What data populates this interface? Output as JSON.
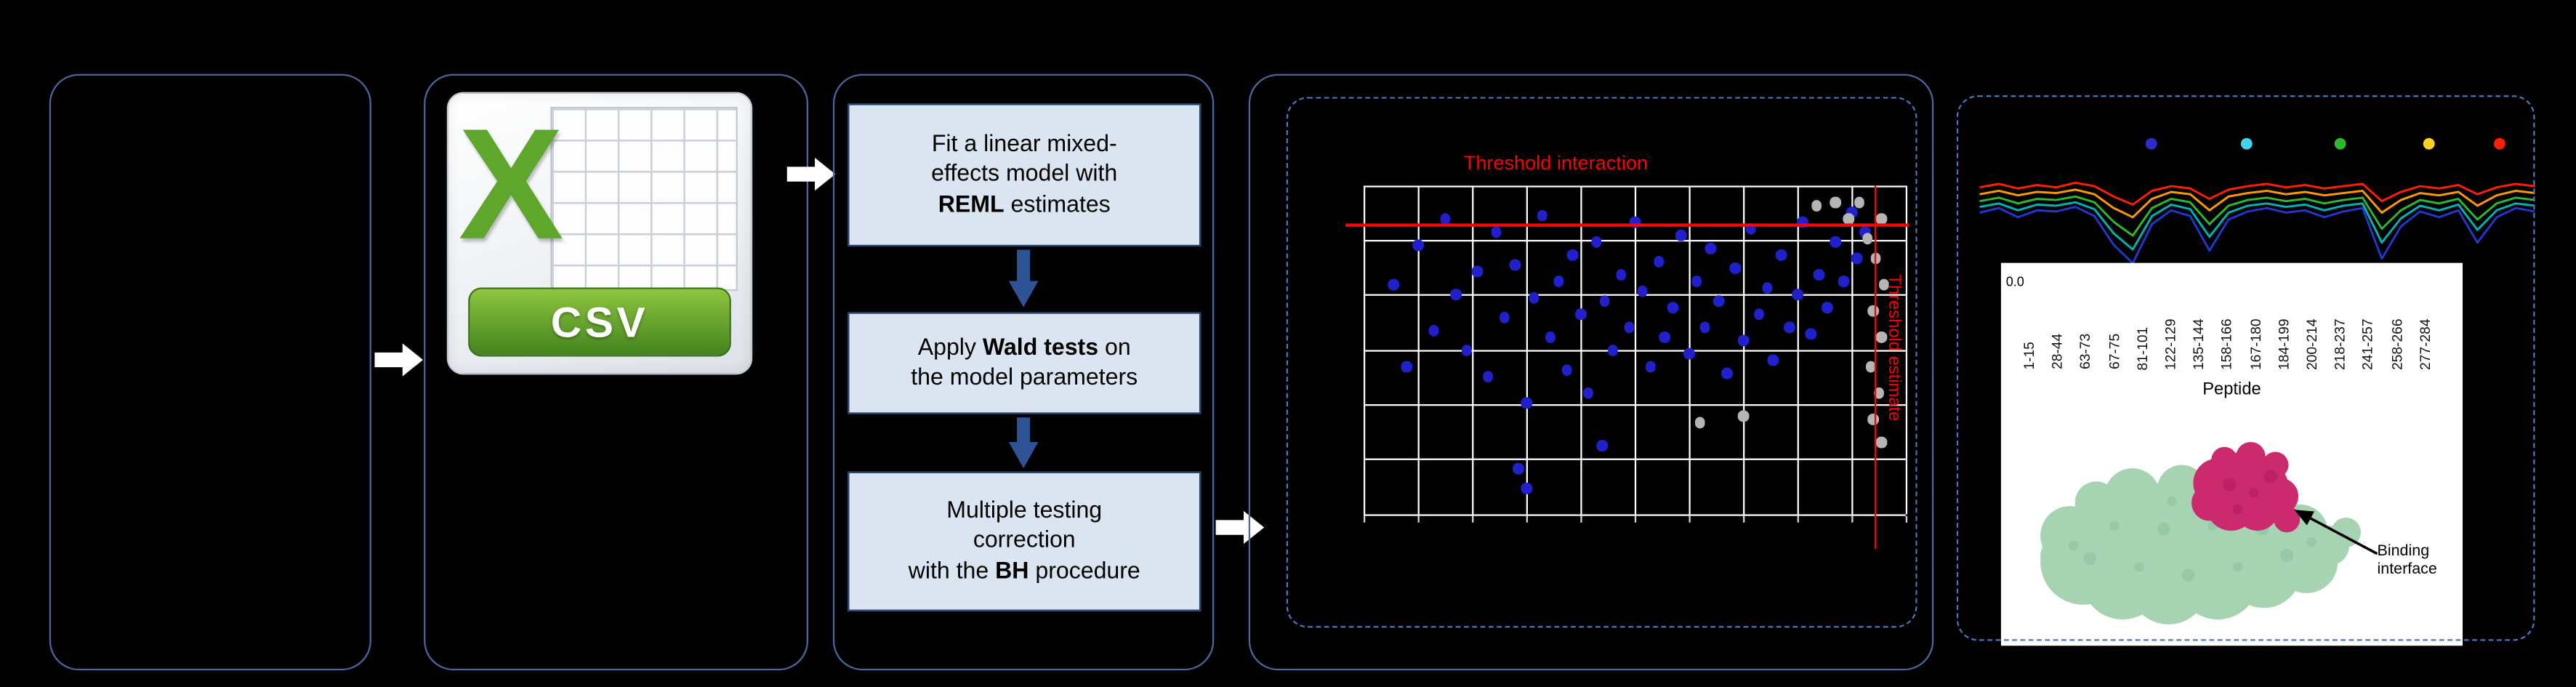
{
  "colors": {
    "panel_border": "#49679f",
    "dashed_border": "#4b76c0",
    "process_fill": "#dbe5f1",
    "process_border": "#24426e",
    "flow_arrow": "#ffffff",
    "step_arrow": "#2e5496",
    "threshold_red": "#ff0000",
    "grid_white": "#ffffff",
    "point_blue": "#2020cc",
    "point_gray": "#b5b5b5",
    "csv_green": "#5ea62c",
    "banner_green_top": "#8dc63f",
    "banner_green_bottom": "#44831e",
    "protein_green": "#a6d3b2",
    "protein_green_dark": "#7fb894",
    "protein_pink": "#cc2a6e",
    "protein_pink_dark": "#a81256"
  },
  "csv": {
    "x_letter": "X",
    "label": "CSV"
  },
  "process": {
    "steps": [
      {
        "lines": [
          [
            {
              "t": "Fit a linear mixed-"
            }
          ],
          [
            {
              "t": "effects model with"
            }
          ],
          [
            {
              "t": "REML",
              "b": true
            },
            {
              "t": " estimates"
            }
          ]
        ]
      },
      {
        "lines": [
          [
            {
              "t": "Apply "
            },
            {
              "t": "Wald tests",
              "b": true
            },
            {
              "t": " on"
            }
          ],
          [
            {
              "t": "the model parameters"
            }
          ]
        ]
      },
      {
        "lines": [
          [
            {
              "t": "Multiple testing"
            }
          ],
          [
            {
              "t": "correction"
            }
          ],
          [
            {
              "t": "with the "
            },
            {
              "t": "BH",
              "b": true
            },
            {
              "t": " procedure"
            }
          ]
        ]
      }
    ]
  },
  "scatter": {
    "type": "scatter",
    "title": "Threshold interaction",
    "side_label": "Threshold estimate",
    "grid": {
      "cols": 10,
      "rows": 6
    },
    "threshold_interaction_y": 0.12,
    "threshold_estimate_x": 0.945,
    "points_blue": [
      [
        0.055,
        0.3
      ],
      [
        0.08,
        0.55
      ],
      [
        0.1,
        0.18
      ],
      [
        0.13,
        0.44
      ],
      [
        0.15,
        0.1
      ],
      [
        0.17,
        0.33
      ],
      [
        0.19,
        0.5
      ],
      [
        0.21,
        0.26
      ],
      [
        0.23,
        0.58
      ],
      [
        0.245,
        0.14
      ],
      [
        0.26,
        0.4
      ],
      [
        0.28,
        0.24
      ],
      [
        0.285,
        0.86
      ],
      [
        0.3,
        0.92
      ],
      [
        0.3,
        0.66
      ],
      [
        0.315,
        0.34
      ],
      [
        0.33,
        0.09
      ],
      [
        0.345,
        0.46
      ],
      [
        0.36,
        0.29
      ],
      [
        0.375,
        0.56
      ],
      [
        0.385,
        0.21
      ],
      [
        0.4,
        0.39
      ],
      [
        0.415,
        0.63
      ],
      [
        0.43,
        0.17
      ],
      [
        0.44,
        0.79
      ],
      [
        0.445,
        0.35
      ],
      [
        0.46,
        0.5
      ],
      [
        0.475,
        0.27
      ],
      [
        0.49,
        0.43
      ],
      [
        0.5,
        0.11
      ],
      [
        0.515,
        0.32
      ],
      [
        0.53,
        0.55
      ],
      [
        0.545,
        0.23
      ],
      [
        0.555,
        0.46
      ],
      [
        0.57,
        0.37
      ],
      [
        0.585,
        0.15
      ],
      [
        0.6,
        0.51
      ],
      [
        0.615,
        0.29
      ],
      [
        0.63,
        0.43
      ],
      [
        0.64,
        0.19
      ],
      [
        0.655,
        0.35
      ],
      [
        0.67,
        0.57
      ],
      [
        0.685,
        0.25
      ],
      [
        0.7,
        0.47
      ],
      [
        0.715,
        0.13
      ],
      [
        0.73,
        0.39
      ],
      [
        0.745,
        0.31
      ],
      [
        0.755,
        0.53
      ],
      [
        0.77,
        0.21
      ],
      [
        0.785,
        0.43
      ],
      [
        0.8,
        0.33
      ],
      [
        0.81,
        0.11
      ],
      [
        0.825,
        0.45
      ],
      [
        0.84,
        0.27
      ],
      [
        0.855,
        0.37
      ],
      [
        0.87,
        0.17
      ],
      [
        0.885,
        0.29
      ],
      [
        0.9,
        0.08
      ],
      [
        0.91,
        0.22
      ],
      [
        0.925,
        0.14
      ]
    ],
    "points_gray": [
      [
        0.835,
        0.06
      ],
      [
        0.87,
        0.05
      ],
      [
        0.895,
        0.1
      ],
      [
        0.915,
        0.05
      ],
      [
        0.93,
        0.16
      ],
      [
        0.955,
        0.1
      ],
      [
        0.945,
        0.22
      ],
      [
        0.96,
        0.3
      ],
      [
        0.94,
        0.38
      ],
      [
        0.955,
        0.46
      ],
      [
        0.935,
        0.55
      ],
      [
        0.95,
        0.63
      ],
      [
        0.94,
        0.71
      ],
      [
        0.955,
        0.78
      ],
      [
        0.7,
        0.7
      ],
      [
        0.62,
        0.72
      ]
    ]
  },
  "kinetics": {
    "type": "line",
    "legend_dots": [
      {
        "color": "#2d2dc8",
        "x": 0.31
      },
      {
        "color": "#3fd4e8",
        "x": 0.48
      },
      {
        "color": "#2eb82e",
        "x": 0.65
      },
      {
        "color": "#ffd21f",
        "x": 0.81
      },
      {
        "color": "#ff1f00",
        "x": 0.935
      }
    ],
    "series": [
      {
        "color": "#ff1f00",
        "values": [
          0.3,
          0.27,
          0.31,
          0.28,
          0.3,
          0.26,
          0.29,
          0.38,
          0.45,
          0.33,
          0.29,
          0.31,
          0.4,
          0.32,
          0.29,
          0.27,
          0.3,
          0.28,
          0.31,
          0.29,
          0.27,
          0.42,
          0.34,
          0.29,
          0.31,
          0.28,
          0.36,
          0.3,
          0.27,
          0.29
        ]
      },
      {
        "color": "#ff9900",
        "values": [
          0.36,
          0.33,
          0.37,
          0.34,
          0.35,
          0.32,
          0.36,
          0.48,
          0.56,
          0.4,
          0.34,
          0.36,
          0.5,
          0.38,
          0.35,
          0.33,
          0.36,
          0.34,
          0.37,
          0.35,
          0.33,
          0.52,
          0.41,
          0.35,
          0.37,
          0.34,
          0.46,
          0.37,
          0.33,
          0.35
        ]
      },
      {
        "color": "#2eb82e",
        "values": [
          0.42,
          0.39,
          0.44,
          0.4,
          0.41,
          0.38,
          0.43,
          0.6,
          0.72,
          0.48,
          0.4,
          0.43,
          0.62,
          0.46,
          0.41,
          0.39,
          0.42,
          0.4,
          0.44,
          0.41,
          0.39,
          0.66,
          0.5,
          0.41,
          0.44,
          0.4,
          0.58,
          0.44,
          0.39,
          0.41
        ]
      },
      {
        "color": "#00b3b3",
        "values": [
          0.47,
          0.44,
          0.5,
          0.45,
          0.46,
          0.43,
          0.49,
          0.7,
          0.84,
          0.55,
          0.45,
          0.49,
          0.73,
          0.52,
          0.46,
          0.44,
          0.47,
          0.45,
          0.5,
          0.46,
          0.44,
          0.78,
          0.57,
          0.46,
          0.5,
          0.45,
          0.67,
          0.5,
          0.44,
          0.46
        ]
      },
      {
        "color": "#2038d0",
        "values": [
          0.52,
          0.48,
          0.56,
          0.5,
          0.51,
          0.47,
          0.55,
          0.8,
          0.96,
          0.62,
          0.5,
          0.55,
          0.85,
          0.58,
          0.51,
          0.48,
          0.52,
          0.5,
          0.56,
          0.51,
          0.48,
          0.92,
          0.64,
          0.51,
          0.56,
          0.5,
          0.78,
          0.56,
          0.48,
          0.51
        ]
      }
    ]
  },
  "peptide_panel": {
    "y_axis_label": "0.0",
    "x_axis_title": "Peptide",
    "labels": [
      "1-15",
      "28-44",
      "63-73",
      "67-75",
      "81-101",
      "122-129",
      "135-144",
      "158-166",
      "167-180",
      "184-199",
      "200-214",
      "218-237",
      "241-257",
      "258-266",
      "277-284"
    ],
    "binding_label": "Binding interface"
  }
}
